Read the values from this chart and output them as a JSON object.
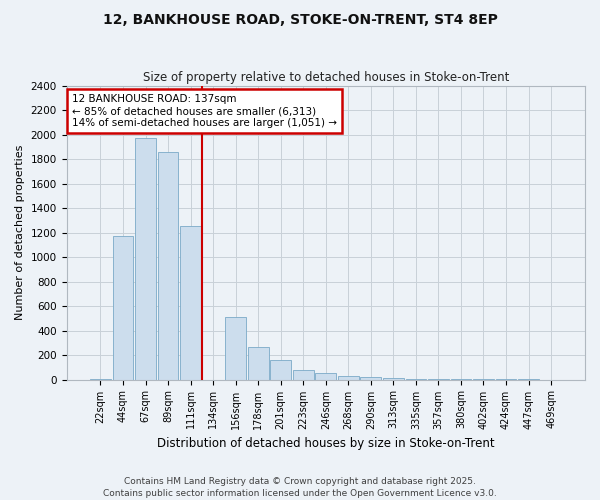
{
  "title_line1": "12, BANKHOUSE ROAD, STOKE-ON-TRENT, ST4 8EP",
  "title_line2": "Size of property relative to detached houses in Stoke-on-Trent",
  "xlabel": "Distribution of detached houses by size in Stoke-on-Trent",
  "ylabel": "Number of detached properties",
  "categories": [
    "22sqm",
    "44sqm",
    "67sqm",
    "89sqm",
    "111sqm",
    "134sqm",
    "156sqm",
    "178sqm",
    "201sqm",
    "223sqm",
    "246sqm",
    "268sqm",
    "290sqm",
    "313sqm",
    "335sqm",
    "357sqm",
    "380sqm",
    "402sqm",
    "424sqm",
    "447sqm",
    "469sqm"
  ],
  "values": [
    5,
    1170,
    1970,
    1860,
    1250,
    0,
    510,
    270,
    160,
    80,
    50,
    30,
    20,
    10,
    5,
    5,
    3,
    2,
    1,
    1,
    0
  ],
  "bar_color": "#ccdded",
  "bar_edge_color": "#7aaac8",
  "vline_color": "#cc0000",
  "vline_xindex": 5,
  "annotation_text": "12 BANKHOUSE ROAD: 137sqm\n← 85% of detached houses are smaller (6,313)\n14% of semi-detached houses are larger (1,051) →",
  "annotation_box_color": "#ffffff",
  "annotation_box_edge": "#cc0000",
  "ylim": [
    0,
    2400
  ],
  "yticks": [
    0,
    200,
    400,
    600,
    800,
    1000,
    1200,
    1400,
    1600,
    1800,
    2000,
    2200,
    2400
  ],
  "grid_color": "#c8d0d8",
  "background_color": "#edf2f7",
  "footer_line1": "Contains HM Land Registry data © Crown copyright and database right 2025.",
  "footer_line2": "Contains public sector information licensed under the Open Government Licence v3.0."
}
